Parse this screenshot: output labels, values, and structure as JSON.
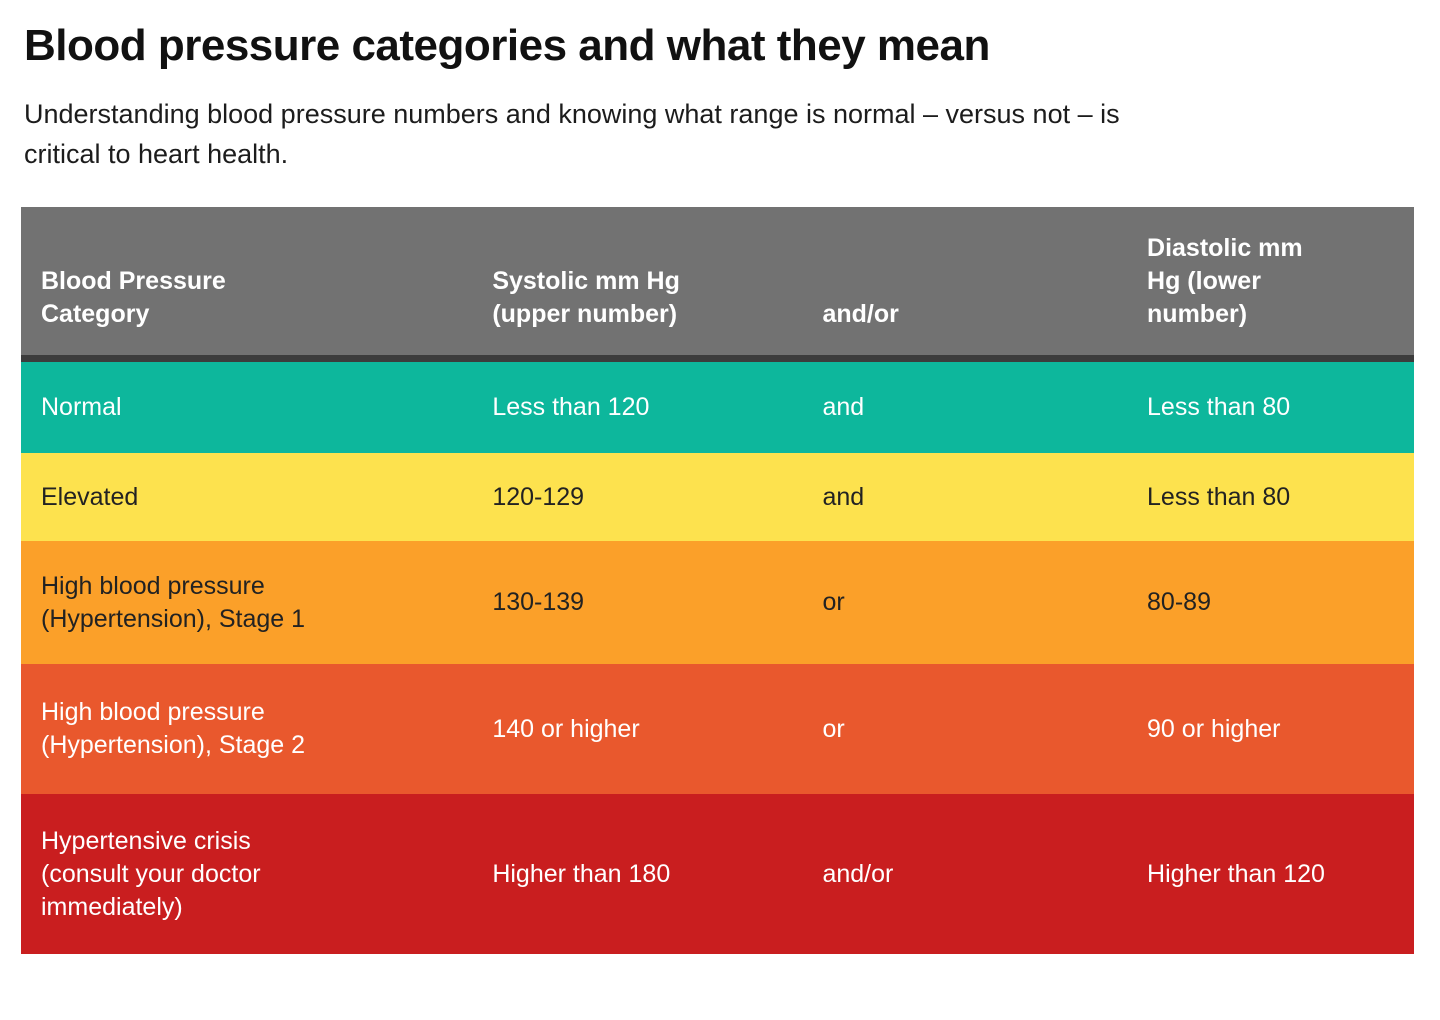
{
  "header": {
    "title": "Blood pressure categories and what they mean",
    "subtitle": "Understanding blood pressure numbers and knowing what range is normal – versus not – is\ncritical to heart health."
  },
  "colors": {
    "header_bg": "#727272",
    "header_fg": "#ffffff",
    "header_separator": "#3c3c3c",
    "normal_bg": "#0db79c",
    "elevated_bg": "#fde24e",
    "stage1_bg": "#fba029",
    "stage2_bg": "#e9582d",
    "crisis_bg": "#c91e1f",
    "dark_text": "#222222",
    "light_text": "#ffffff"
  },
  "table": {
    "columns": [
      {
        "label": "Blood Pressure\nCategory"
      },
      {
        "label": "Systolic mm Hg\n(upper number)"
      },
      {
        "label": "and/or"
      },
      {
        "label": "Diastolic mm\nHg (lower\nnumber)"
      }
    ],
    "header_bg": "#727272",
    "header_fg": "#ffffff",
    "rows": [
      {
        "name": "normal",
        "bg": "#0db79c",
        "fg": "#ffffff",
        "cells": [
          "Normal",
          "Less than 120",
          "and",
          "Less than 80"
        ]
      },
      {
        "name": "elevated",
        "bg": "#fde24e",
        "fg": "#222222",
        "cells": [
          "Elevated",
          "120-129",
          "and",
          "Less than 80"
        ]
      },
      {
        "name": "hypertension-stage-1",
        "bg": "#fba029",
        "fg": "#222222",
        "cells": [
          "High blood pressure\n(Hypertension), Stage 1",
          "130-139",
          "or",
          "80-89"
        ]
      },
      {
        "name": "hypertension-stage-2",
        "bg": "#e9582d",
        "fg": "#ffffff",
        "cells": [
          "High blood pressure\n(Hypertension), Stage 2",
          "140 or higher",
          "or",
          "90 or higher"
        ]
      },
      {
        "name": "hypertensive-crisis",
        "bg": "#c91e1f",
        "fg": "#ffffff",
        "cells": [
          "Hypertensive crisis\n(consult your doctor\nimmediately)",
          "Higher than 180",
          "and/or",
          "Higher than 120"
        ]
      }
    ]
  },
  "chart_data": {
    "type": "table",
    "title": "Blood pressure categories and what they mean",
    "columns": [
      "Blood Pressure Category",
      "Systolic mm Hg (upper number)",
      "and/or",
      "Diastolic mm Hg (lower number)"
    ],
    "rows": [
      [
        "Normal",
        "Less than 120",
        "and",
        "Less than 80"
      ],
      [
        "Elevated",
        "120-129",
        "and",
        "Less than 80"
      ],
      [
        "High blood pressure (Hypertension), Stage 1",
        "130-139",
        "or",
        "80-89"
      ],
      [
        "High blood pressure (Hypertension), Stage 2",
        "140 or higher",
        "or",
        "90 or higher"
      ],
      [
        "Hypertensive crisis (consult your doctor immediately)",
        "Higher than 180",
        "and/or",
        "Higher than 120"
      ]
    ],
    "row_colors": [
      "#0db79c",
      "#fde24e",
      "#fba029",
      "#e9582d",
      "#c91e1f"
    ],
    "header_color": "#727272"
  }
}
